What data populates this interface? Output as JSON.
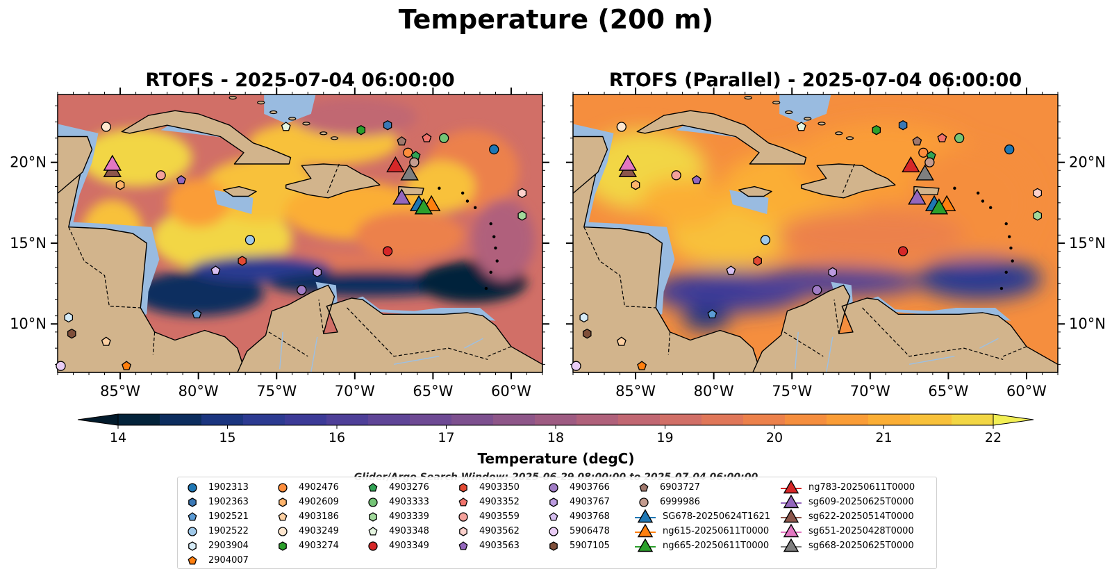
{
  "suptitle": "Temperature (200 m)",
  "panels": [
    {
      "title": "RTOFS - 2025-07-04 06:00:00"
    },
    {
      "title": "RTOFS (Parallel) - 2025-07-04 06:00:00"
    }
  ],
  "map_extent": {
    "lon": [
      -89,
      -58
    ],
    "lat": [
      7,
      24.2
    ]
  },
  "x_ticks": [
    -85,
    -80,
    -75,
    -70,
    -65,
    -60
  ],
  "x_tick_labels": [
    "85°W",
    "80°W",
    "75°W",
    "70°W",
    "65°W",
    "60°W"
  ],
  "y_ticks": [
    10,
    15,
    20
  ],
  "y_tick_labels": [
    "10°N",
    "15°N",
    "20°N"
  ],
  "colorbar": {
    "label": "Temperature (degC)",
    "min": 14,
    "max": 22,
    "ticks": [
      "14",
      "15",
      "16",
      "17",
      "18",
      "19",
      "20",
      "21",
      "22"
    ],
    "colors": [
      "#03233a",
      "#0c2d5e",
      "#1b357f",
      "#2c3a91",
      "#3c3a97",
      "#4e3f98",
      "#5f4597",
      "#6e4a94",
      "#7d508f",
      "#8e5689",
      "#9e5b82",
      "#b0617b",
      "#c16772",
      "#d16f67",
      "#e07759",
      "#ec814b",
      "#f58e3e",
      "#fa9d37",
      "#fbae35",
      "#f8c13a",
      "#f2d644"
    ]
  },
  "search_window": "Glider/Argo Search Window: 2025-06-29 08:00:00 to 2025-07-04 06:00:00",
  "land_color": "#d2b48c",
  "shelf_color": "#99bbe0",
  "floats": [
    {
      "id": "1902313",
      "marker": "circle",
      "color": "#1f77b4",
      "lon": -61.1,
      "lat": 20.8
    },
    {
      "id": "1902363",
      "marker": "hexagon",
      "color": "#3a78b5",
      "lon": -67.9,
      "lat": 22.3
    },
    {
      "id": "1902521",
      "marker": "pentagon",
      "color": "#5b9bd5",
      "lon": -80.1,
      "lat": 10.6
    },
    {
      "id": "1902522",
      "marker": "circle",
      "color": "#9fc8e8",
      "lon": -76.7,
      "lat": 15.2
    },
    {
      "id": "2903904",
      "marker": "hexagon",
      "color": "#d6ecf8",
      "lon": -88.3,
      "lat": 10.4
    },
    {
      "id": "2904007",
      "marker": "pentagon",
      "color": "#ff7f0e",
      "lon": -84.6,
      "lat": 7.4
    },
    {
      "id": "4902476",
      "marker": "circle",
      "color": "#fd8d3c",
      "lon": -66.6,
      "lat": 20.6
    },
    {
      "id": "4902609",
      "marker": "hexagon",
      "color": "#fdb36b",
      "lon": -85.0,
      "lat": 18.6
    },
    {
      "id": "4903186",
      "marker": "pentagon",
      "color": "#fdd0a2",
      "lon": -85.9,
      "lat": 8.9
    },
    {
      "id": "4903249",
      "marker": "circle",
      "color": "#fee6ce",
      "lon": -85.9,
      "lat": 22.2
    },
    {
      "id": "4903274",
      "marker": "hexagon",
      "color": "#2ca02c",
      "lon": -69.6,
      "lat": 22.0
    },
    {
      "id": "4903276",
      "marker": "pentagon",
      "color": "#31a354",
      "lon": -66.1,
      "lat": 20.4
    },
    {
      "id": "4903333",
      "marker": "circle",
      "color": "#74c476",
      "lon": -64.3,
      "lat": 21.5
    },
    {
      "id": "4903339",
      "marker": "hexagon",
      "color": "#a1d99b",
      "lon": -59.3,
      "lat": 16.7
    },
    {
      "id": "4903348",
      "marker": "pentagon",
      "color": "#e5f5e0",
      "lon": -74.4,
      "lat": 22.2
    },
    {
      "id": "4903349",
      "marker": "circle",
      "color": "#d62728",
      "lon": -67.9,
      "lat": 14.5
    },
    {
      "id": "4903350",
      "marker": "hexagon",
      "color": "#e34a33",
      "lon": -77.2,
      "lat": 13.9
    },
    {
      "id": "4903352",
      "marker": "pentagon",
      "color": "#f0736b",
      "lon": -65.4,
      "lat": 21.5
    },
    {
      "id": "4903559",
      "marker": "circle",
      "color": "#f4a19b",
      "lon": -82.4,
      "lat": 19.2
    },
    {
      "id": "4903562",
      "marker": "hexagon",
      "color": "#fcd1cc",
      "lon": -59.3,
      "lat": 18.1
    },
    {
      "id": "4903563",
      "marker": "pentagon",
      "color": "#9467bd",
      "lon": -81.1,
      "lat": 18.9
    },
    {
      "id": "4903766",
      "marker": "circle",
      "color": "#a07cc5",
      "lon": -73.4,
      "lat": 12.1
    },
    {
      "id": "4903767",
      "marker": "hexagon",
      "color": "#bc9be0",
      "lon": -72.4,
      "lat": 13.2
    },
    {
      "id": "4903768",
      "marker": "pentagon",
      "color": "#d6bef0",
      "lon": -78.9,
      "lat": 13.3
    },
    {
      "id": "5906478",
      "marker": "circle",
      "color": "#e9ccf5",
      "lon": -88.8,
      "lat": 7.4
    },
    {
      "id": "5907105",
      "marker": "hexagon",
      "color": "#7f4f3a",
      "lon": -88.1,
      "lat": 9.4
    },
    {
      "id": "6903727",
      "marker": "pentagon",
      "color": "#a0786c",
      "lon": -67.0,
      "lat": 21.3
    },
    {
      "id": "6999986",
      "marker": "circle",
      "color": "#c49c8f",
      "lon": -66.2,
      "lat": 20.0
    }
  ],
  "gliders": [
    {
      "id": "SG678-20250624T1621",
      "color": "#1f77b4",
      "lon": -65.9,
      "lat": 17.4
    },
    {
      "id": "ng615-20250611T0000",
      "color": "#ff7f0e",
      "lon": -65.1,
      "lat": 17.4
    },
    {
      "id": "ng665-20250611T0000",
      "color": "#2ca02c",
      "lon": -65.6,
      "lat": 17.2
    },
    {
      "id": "ng783-20250611T0000",
      "color": "#d62728",
      "lon": -67.4,
      "lat": 19.8
    },
    {
      "id": "sg609-20250625T0000",
      "color": "#9467bd",
      "lon": -67.0,
      "lat": 17.8
    },
    {
      "id": "sg622-20250514T0000",
      "color": "#8c564b",
      "lon": -85.5,
      "lat": 19.5
    },
    {
      "id": "sg651-20250428T0000",
      "color": "#e377c2",
      "lon": -85.5,
      "lat": 19.9
    },
    {
      "id": "sg668-20250625T0000",
      "color": "#7f7f7f",
      "lon": -66.5,
      "lat": 19.3
    }
  ]
}
